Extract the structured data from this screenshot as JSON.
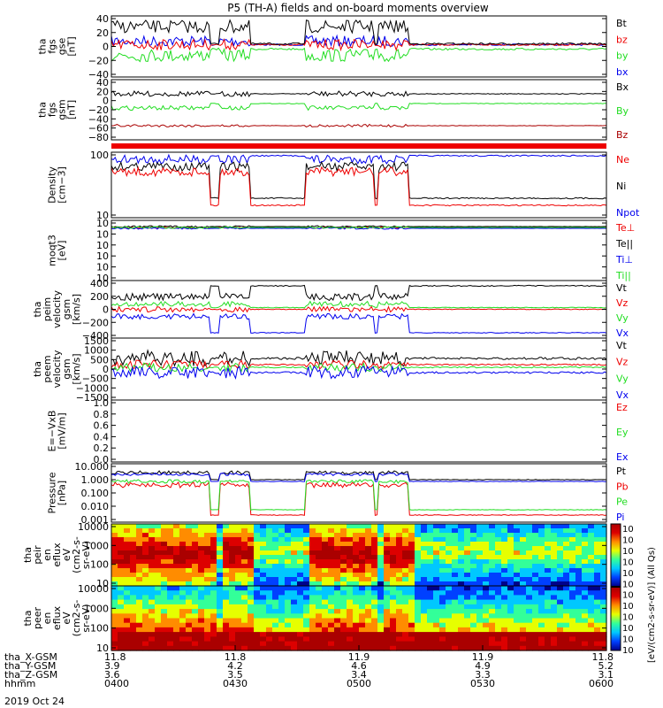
{
  "title": "P5 (TH-A) fields and on-board moments overview",
  "date_label": "2019 Oct 24",
  "colors": {
    "black": "#000000",
    "red": "#ee0000",
    "green": "#22dd22",
    "blue": "#0000ee",
    "darkred": "#aa0000"
  },
  "chart_data": [
    {
      "type": "line",
      "ylabel": [
        "tha",
        "fgs",
        "gse",
        "[nT]"
      ],
      "yticks": [
        "40",
        "20",
        "0",
        "−20",
        "−40"
      ],
      "legend": [
        {
          "label": "Bt",
          "color": "#000000"
        },
        {
          "label": "bz",
          "color": "#ee0000"
        },
        {
          "label": "by",
          "color": "#22dd22"
        },
        {
          "label": "bx",
          "color": "#0000ee"
        }
      ]
    },
    {
      "type": "line",
      "ylabel": [
        "tha",
        "fgs",
        "gsm",
        "[nT]"
      ],
      "yticks": [
        "40",
        "20",
        "0",
        "−20",
        "−40",
        "−60",
        "−80"
      ],
      "legend": [
        {
          "label": "Bx",
          "color": "#000000"
        },
        {
          "label": "By",
          "color": "#22dd22"
        },
        {
          "label": "Bz",
          "color": "#aa0000"
        }
      ]
    },
    {
      "type": "line",
      "ylabel": [
        "Density",
        "[cm−3]"
      ],
      "yticks": [
        "100",
        "10"
      ],
      "legend": [
        {
          "label": "Ne",
          "color": "#ee0000"
        },
        {
          "label": "Ni",
          "color": "#000000"
        },
        {
          "label": "Npot",
          "color": "#0000ee"
        }
      ]
    },
    {
      "type": "line",
      "ylabel": [
        "moqt3",
        "[eV]"
      ],
      "yticks": [
        "10",
        "10",
        "10",
        "10",
        "10",
        "10"
      ],
      "legend": [
        {
          "label": "Te⊥",
          "color": "#ee0000"
        },
        {
          "label": "Te||",
          "color": "#000000"
        },
        {
          "label": "Ti⊥",
          "color": "#0000ee"
        },
        {
          "label": "Ti||",
          "color": "#22dd22"
        }
      ]
    },
    {
      "type": "line",
      "ylabel": [
        "tha",
        "peim",
        "velocity",
        "gsm",
        "[km/s]"
      ],
      "yticks": [
        "400",
        "200",
        "0",
        "−200",
        "−400"
      ],
      "legend": [
        {
          "label": "Vt",
          "color": "#000000"
        },
        {
          "label": "Vz",
          "color": "#ee0000"
        },
        {
          "label": "Vy",
          "color": "#22dd22"
        },
        {
          "label": "Vx",
          "color": "#0000ee"
        }
      ]
    },
    {
      "type": "line",
      "ylabel": [
        "tha",
        "peem",
        "velocity",
        "gsm",
        "[km/s]"
      ],
      "yticks": [
        "1500",
        "1000",
        "500",
        "0",
        "−500",
        "−1000",
        "−1500"
      ],
      "legend": [
        {
          "label": "Vt",
          "color": "#000000"
        },
        {
          "label": "Vz",
          "color": "#ee0000"
        },
        {
          "label": "Vy",
          "color": "#22dd22"
        },
        {
          "label": "Vx",
          "color": "#0000ee"
        }
      ]
    },
    {
      "type": "line",
      "ylabel": [
        "E=−VxB",
        "[mV/m]"
      ],
      "yticks": [
        "1.0",
        "0.8",
        "0.6",
        "0.4",
        "0.2",
        "0.0"
      ],
      "legend": [
        {
          "label": "Ez",
          "color": "#ee0000"
        },
        {
          "label": "Ey",
          "color": "#22dd22"
        },
        {
          "label": "Ex",
          "color": "#0000ee"
        }
      ]
    },
    {
      "type": "line",
      "ylabel": [
        "Pressure",
        "[nPa]"
      ],
      "yticks": [
        "10.000",
        "1.000",
        "0.100",
        "0.010",
        "0.001"
      ],
      "legend": [
        {
          "label": "Pt",
          "color": "#000000"
        },
        {
          "label": "Pb",
          "color": "#ee0000"
        },
        {
          "label": "Pe",
          "color": "#22dd22"
        },
        {
          "label": "Pi",
          "color": "#0000ee"
        }
      ]
    },
    {
      "type": "heatmap",
      "ylabel": [
        "tha",
        "peir",
        "en",
        "eflux",
        "eV",
        "(cm2-s-",
        "sr-eV)"
      ],
      "yticks": [
        "10000",
        "1000",
        "100",
        "10"
      ]
    },
    {
      "type": "heatmap",
      "ylabel": [
        "tha",
        "peer",
        "en",
        "eflux",
        "eV",
        "(cm2-s-",
        "sr-eV)"
      ],
      "yticks": [
        "10000",
        "1000",
        "100",
        "10"
      ]
    }
  ],
  "colorbar": {
    "label": "[eV/(cm2-s-sr-eV)] (All Qs)",
    "ticks": [
      "10",
      "10",
      "10",
      "10",
      "10",
      "10",
      "10",
      "10",
      "10",
      "10",
      "10",
      "10"
    ]
  },
  "xaxis": {
    "row_labels": [
      "tha_X-GSM",
      "tha_Y-GSM",
      "tha_Z-GSM",
      "hhmm"
    ],
    "columns": [
      [
        "11.8",
        "3.9",
        "3.6",
        "0400"
      ],
      [
        "11.8",
        "4.2",
        "3.5",
        "0430"
      ],
      [
        "11.9",
        "4.6",
        "3.4",
        "0500"
      ],
      [
        "11.9",
        "4.9",
        "3.3",
        "0530"
      ],
      [
        "11.8",
        "5.2",
        "3.1",
        "0600"
      ]
    ]
  }
}
